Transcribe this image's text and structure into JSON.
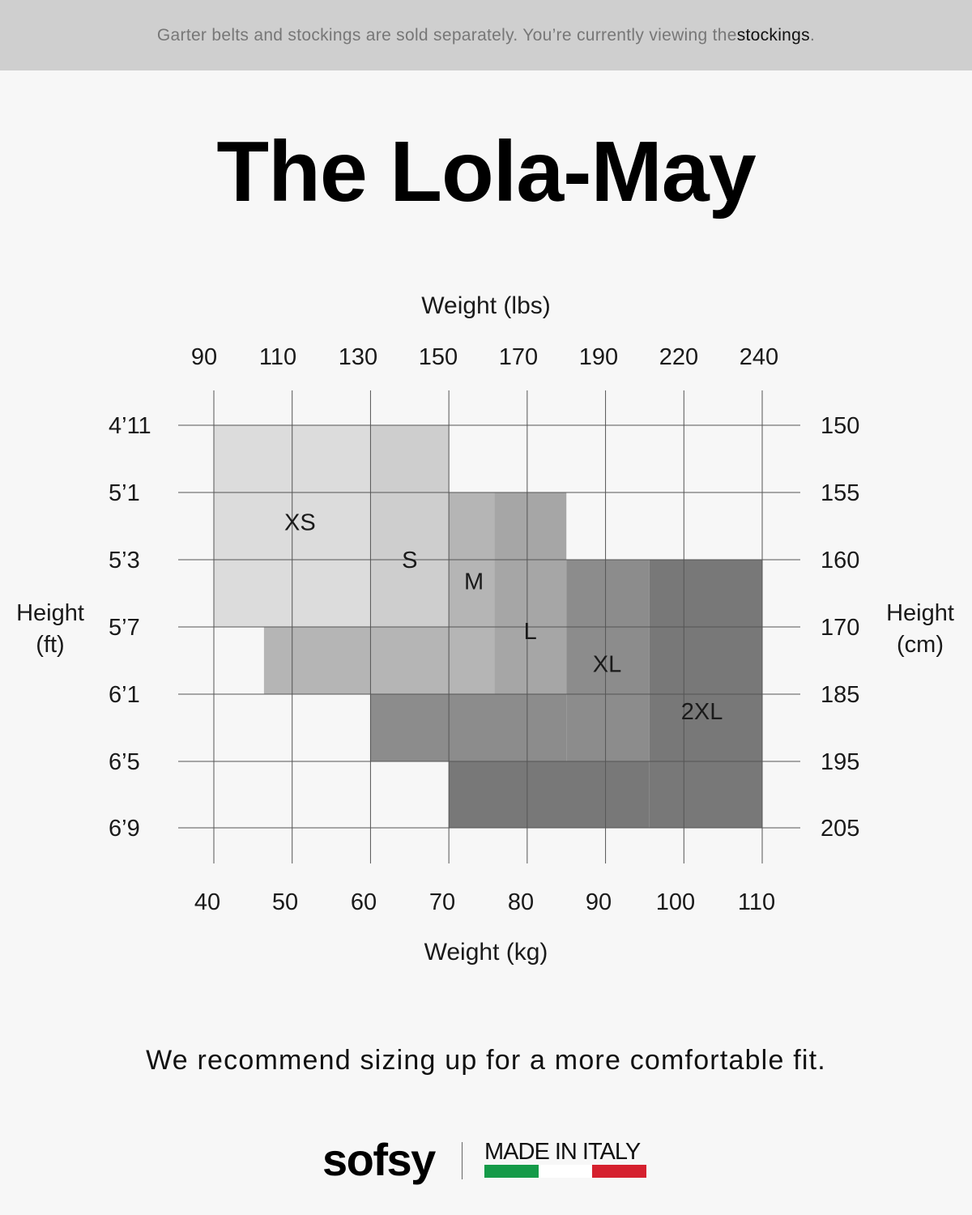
{
  "banner": {
    "prefix": "Garter belts and stockings are sold separately. You’re currently viewing the ",
    "emphasis": "stockings",
    "suffix": "."
  },
  "title": "The Lola-May",
  "chart_data": {
    "type": "heatmap",
    "title": "The Lola-May",
    "x_top_label": "Weight (lbs)",
    "x_top_ticks": [
      "90",
      "110",
      "130",
      "150",
      "170",
      "190",
      "220",
      "240"
    ],
    "x_bottom_label": "Weight (kg)",
    "x_bottom_ticks": [
      "40",
      "50",
      "60",
      "70",
      "80",
      "90",
      "100",
      "110"
    ],
    "y_left_label": [
      "Height",
      "(ft)"
    ],
    "y_left_ticks": [
      "4’11",
      "5’1",
      "5’3",
      "5’7",
      "6’1",
      "6’5",
      "6’9"
    ],
    "y_right_label": [
      "Height",
      "(cm)"
    ],
    "y_right_ticks": [
      "150",
      "155",
      "160",
      "170",
      "185",
      "195",
      "205"
    ],
    "xlim_kg": [
      40,
      110
    ],
    "grid": true,
    "sizes": [
      {
        "name": "XS",
        "color": "#dcdcdc",
        "text_color": "#1a1a1a",
        "regions": [
          {
            "kg": [
              40,
              60
            ],
            "height_cm": [
              150,
              170
            ]
          }
        ]
      },
      {
        "name": "S",
        "color": "#cecece",
        "text_color": "#1a1a1a",
        "regions": [
          {
            "kg": [
              60,
              70
            ],
            "height_cm": [
              150,
              170
            ]
          }
        ]
      },
      {
        "name": "M",
        "color": "#b5b5b5",
        "text_color": "#1a1a1a",
        "regions": [
          {
            "kg": [
              70,
              75.8
            ],
            "height_cm": [
              155,
              185
            ]
          },
          {
            "kg": [
              46.4,
              70
            ],
            "height_cm": [
              170,
              185
            ]
          }
        ]
      },
      {
        "name": "L",
        "color": "#a6a6a6",
        "text_color": "#ffffff",
        "regions": [
          {
            "kg": [
              75.8,
              85
            ],
            "height_cm": [
              155,
              185
            ]
          }
        ]
      },
      {
        "name": "XL",
        "color": "#8c8c8c",
        "text_color": "#ffffff",
        "regions": [
          {
            "kg": [
              85,
              95.6
            ],
            "height_cm": [
              160,
              195
            ]
          },
          {
            "kg": [
              60,
              85
            ],
            "height_cm": [
              185,
              195
            ]
          }
        ]
      },
      {
        "name": "2XL",
        "color": "#787878",
        "text_color": "#ffffff",
        "regions": [
          {
            "kg": [
              95.6,
              110
            ],
            "height_cm": [
              160,
              205
            ]
          },
          {
            "kg": [
              70,
              95.6
            ],
            "height_cm": [
              195,
              205
            ]
          }
        ]
      }
    ]
  },
  "note": "We recommend sizing up for a more comfortable fit.",
  "footer": {
    "brand": "sofsy",
    "made_in": "MADE IN ITALY",
    "flag_colors": [
      "#149a48",
      "#ffffff",
      "#d5202e"
    ]
  }
}
